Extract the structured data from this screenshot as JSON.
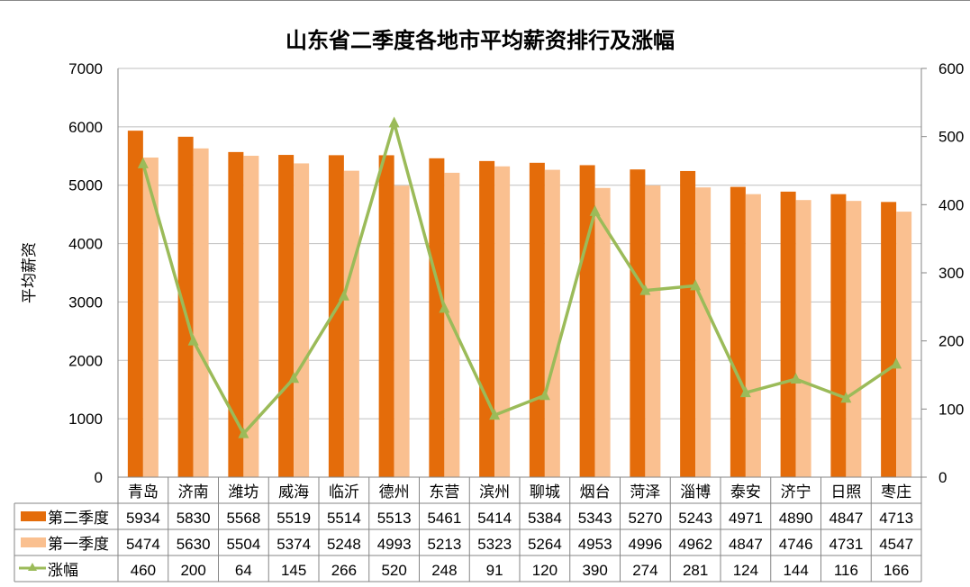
{
  "chart_data": {
    "type": "bar",
    "title": "山东省二季度各地市平均薪资排行及涨幅",
    "xlabel": "",
    "ylabel": "平均薪资",
    "ylim": [
      0,
      7000
    ],
    "y2lim": [
      0,
      600
    ],
    "yticks": [
      0,
      1000,
      2000,
      3000,
      4000,
      5000,
      6000,
      7000
    ],
    "y2ticks": [
      0,
      100,
      200,
      300,
      400,
      500,
      600
    ],
    "grid": true,
    "legend_position": "data-table",
    "categories": [
      "青岛",
      "济南",
      "潍坊",
      "威海",
      "临沂",
      "德州",
      "东营",
      "滨州",
      "聊城",
      "烟台",
      "菏泽",
      "淄博",
      "泰安",
      "济宁",
      "日照",
      "枣庄"
    ],
    "series": [
      {
        "name": "第二季度",
        "type": "bar",
        "axis": "left",
        "color": "#E46C0A",
        "values": [
          5934,
          5830,
          5568,
          5519,
          5514,
          5513,
          5461,
          5414,
          5384,
          5343,
          5270,
          5243,
          4971,
          4890,
          4847,
          4713
        ]
      },
      {
        "name": "第一季度",
        "type": "bar",
        "axis": "left",
        "color": "#FAC090",
        "values": [
          5474,
          5630,
          5504,
          5374,
          5248,
          4993,
          5213,
          5323,
          5264,
          4953,
          4996,
          4962,
          4847,
          4746,
          4731,
          4547
        ]
      },
      {
        "name": "涨幅",
        "type": "line",
        "axis": "right",
        "color": "#9BBB59",
        "marker": "triangle",
        "values": [
          460,
          200,
          64,
          145,
          266,
          520,
          248,
          91,
          120,
          390,
          274,
          281,
          124,
          144,
          116,
          166
        ]
      }
    ]
  }
}
